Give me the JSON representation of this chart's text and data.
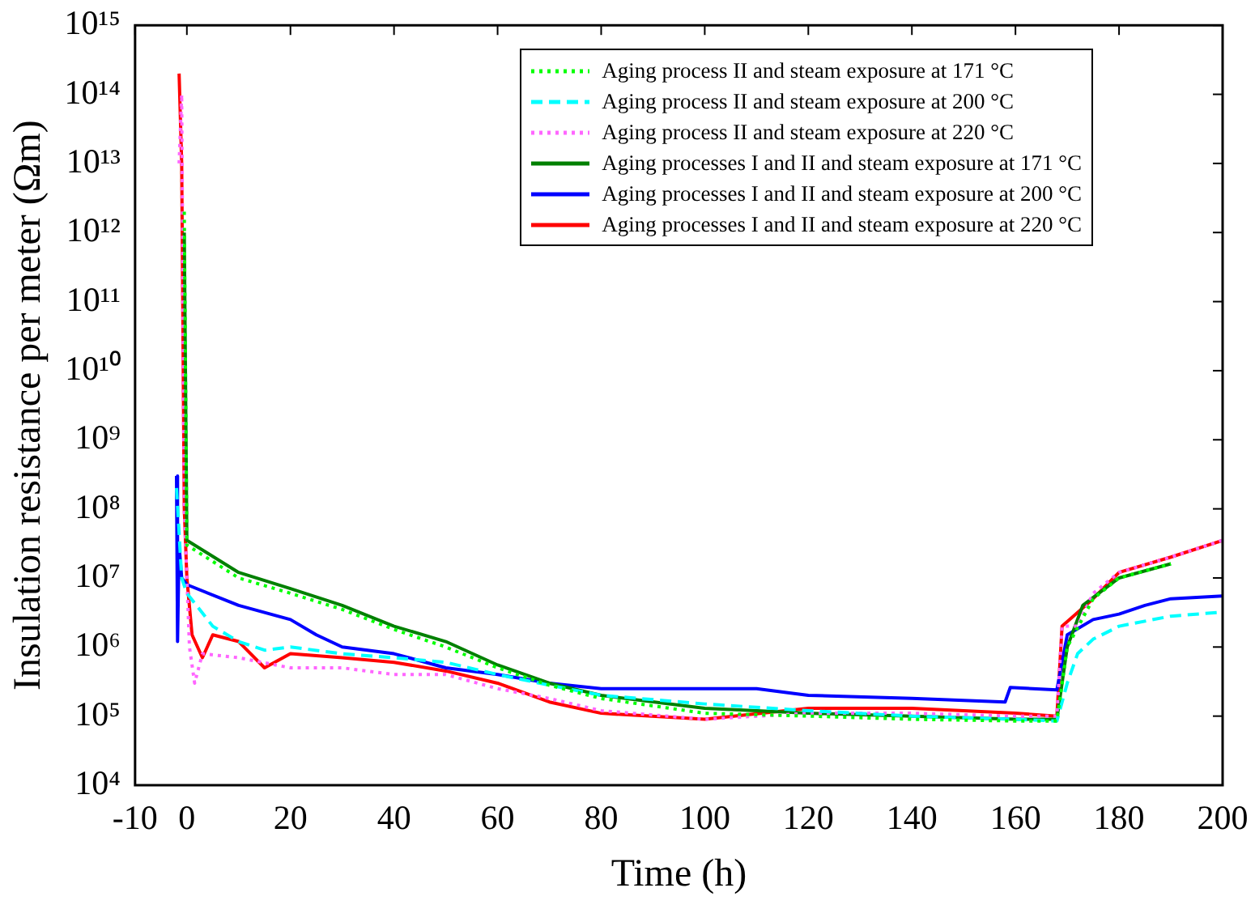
{
  "chart_data": {
    "type": "line",
    "xlabel": "Time (h)",
    "ylabel": "Insulation resistance per meter (Ωm)",
    "log": "y",
    "grid": false,
    "legend": "top right",
    "marker": "none",
    "xlim": [
      -10,
      200
    ],
    "xticks": [
      -10,
      0,
      20,
      40,
      60,
      80,
      100,
      120,
      140,
      160,
      180,
      200
    ],
    "ylim": [
      10000.0,
      1000000000000000.0
    ],
    "yticks": [
      {
        "value": 10000.0,
        "label": "10⁴"
      },
      {
        "value": 100000.0,
        "label": "10⁵"
      },
      {
        "value": 1000000.0,
        "label": "10⁶"
      },
      {
        "value": 10000000.0,
        "label": "10⁷"
      },
      {
        "value": 100000000.0,
        "label": "10⁸"
      },
      {
        "value": 1000000000.0,
        "label": "10⁹"
      },
      {
        "value": 10000000000.0,
        "label": "10¹⁰"
      },
      {
        "value": 100000000000.0,
        "label": "10¹¹"
      },
      {
        "value": 1000000000000.0,
        "label": "10¹²"
      },
      {
        "value": 10000000000000.0,
        "label": "10¹³"
      },
      {
        "value": 100000000000000.0,
        "label": "10¹⁴"
      },
      {
        "value": 1000000000000000.0,
        "label": "10¹⁵"
      }
    ],
    "series": [
      {
        "name": "Aging process II and steam exposure at 171 °C",
        "color": "#00ff00",
        "line_style": "dotted",
        "x": [
          -0.5,
          0,
          10,
          20,
          30,
          40,
          50,
          60,
          70,
          80,
          100,
          120,
          140,
          160,
          168,
          170,
          175,
          180,
          190
        ],
        "values": [
          2000000000000.0,
          30000000.0,
          10000000.0,
          6000000.0,
          3500000.0,
          1800000.0,
          1000000.0,
          500000.0,
          280000.0,
          180000.0,
          110000.0,
          100000.0,
          90000.0,
          85000.0,
          85000.0,
          1000000.0,
          5000000.0,
          10000000.0,
          16000000.0
        ]
      },
      {
        "name": "Aging process II and steam exposure at 200 °C",
        "color": "#00ffff",
        "line_style": "dashed",
        "x": [
          -2,
          -1,
          0,
          5,
          10,
          15,
          20,
          30,
          40,
          50,
          60,
          70,
          80,
          100,
          120,
          140,
          160,
          168,
          170,
          172,
          175,
          180,
          190,
          200
        ],
        "values": [
          200000000.0,
          10000000.0,
          6000000.0,
          2000000.0,
          1200000.0,
          900000.0,
          1000000.0,
          800000.0,
          700000.0,
          600000.0,
          400000.0,
          280000.0,
          200000.0,
          150000.0,
          120000.0,
          100000.0,
          90000.0,
          85000.0,
          300000.0,
          800000.0,
          1300000.0,
          2000000.0,
          2800000.0,
          3200000.0
        ]
      },
      {
        "name": "Aging process II and steam exposure at 220 °C",
        "color": "#ff66ff",
        "line_style": "dotted",
        "x": [
          -1.5,
          -1,
          -0.5,
          0.5,
          1.5,
          3,
          10,
          20,
          30,
          40,
          50,
          60,
          70,
          80,
          100,
          120,
          140,
          160,
          168,
          169,
          172,
          175,
          180,
          190,
          200
        ],
        "values": [
          10000000000000.0,
          100000000000000.0,
          100000000.0,
          1000000.0,
          300000.0,
          800000.0,
          700000.0,
          500000.0,
          500000.0,
          400000.0,
          400000.0,
          250000.0,
          180000.0,
          120000.0,
          90000.0,
          110000.0,
          110000.0,
          100000.0,
          100000.0,
          2000000.0,
          2000000.0,
          6000000.0,
          12000000.0,
          20000000.0,
          35000000.0
        ]
      },
      {
        "name": "Aging processes I and II and steam exposure at 171 °C",
        "color": "#008000",
        "line_style": "solid",
        "x": [
          -0.5,
          0,
          10,
          20,
          30,
          40,
          50,
          60,
          70,
          80,
          100,
          120,
          140,
          160,
          168,
          170,
          173,
          180,
          190
        ],
        "values": [
          1000000000000.0,
          35000000.0,
          12000000.0,
          7000000.0,
          4000000.0,
          2000000.0,
          1200000.0,
          550000.0,
          300000.0,
          200000.0,
          130000.0,
          110000.0,
          100000.0,
          90000.0,
          90000.0,
          1000000.0,
          4000000.0,
          10000000.0,
          16000000.0
        ]
      },
      {
        "name": "Aging processes I and II and steam exposure at 200 °C",
        "color": "#0000ff",
        "line_style": "solid",
        "x": [
          -2,
          -1.8,
          -1.5,
          -1,
          0,
          10,
          20,
          25,
          30,
          40,
          50,
          60,
          70,
          80,
          90,
          100,
          110,
          120,
          140,
          158,
          159,
          168,
          170,
          175,
          180,
          185,
          190,
          200
        ],
        "values": [
          300000000.0,
          1200000.0,
          30000000.0,
          10000000.0,
          8000000.0,
          4000000.0,
          2500000.0,
          1500000.0,
          1000000.0,
          800000.0,
          500000.0,
          400000.0,
          300000.0,
          250000.0,
          250000.0,
          250000.0,
          250000.0,
          200000.0,
          180000.0,
          160000.0,
          260000.0,
          240000.0,
          1500000.0,
          2500000.0,
          3000000.0,
          4000000.0,
          5000000.0,
          5500000.0
        ]
      },
      {
        "name": "Aging processes I and II and steam exposure at 220 °C",
        "color": "#ff0000",
        "line_style": "solid",
        "x": [
          -1.5,
          -1,
          -0.5,
          0,
          1,
          3,
          5,
          10,
          15,
          20,
          30,
          40,
          50,
          60,
          70,
          80,
          100,
          120,
          140,
          160,
          168,
          169,
          175,
          180,
          190,
          200
        ],
        "values": [
          200000000000000.0,
          10000000000000.0,
          100000000.0,
          10000000.0,
          1500000.0,
          700000.0,
          1500000.0,
          1200000.0,
          500000.0,
          800000.0,
          700000.0,
          600000.0,
          450000.0,
          300000.0,
          160000.0,
          110000.0,
          90000.0,
          130000.0,
          130000.0,
          110000.0,
          100000.0,
          2000000.0,
          5000000.0,
          12000000.0,
          20000000.0,
          35000000.0
        ]
      }
    ]
  }
}
